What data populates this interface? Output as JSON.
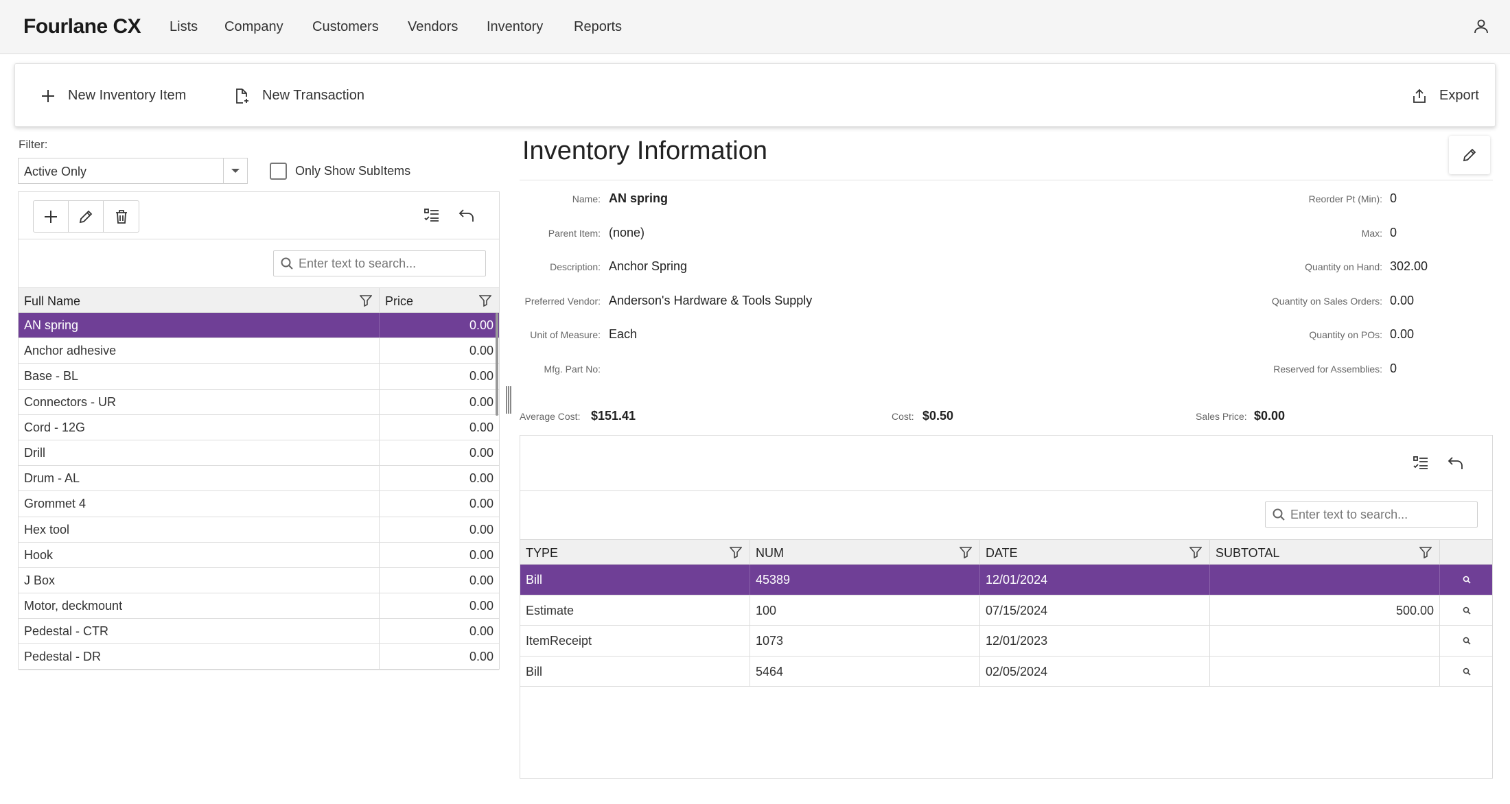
{
  "app": {
    "brand": "Fourlane CX",
    "nav": [
      "Lists",
      "Company",
      "Customers",
      "Vendors",
      "Inventory",
      "Reports"
    ]
  },
  "toolbar": {
    "new_inventory_item": "New Inventory Item",
    "new_transaction": "New Transaction",
    "export": "Export"
  },
  "filter": {
    "label": "Filter:",
    "value": "Active Only",
    "checkbox_label": "Only Show SubItems"
  },
  "left_grid": {
    "search_placeholder": "Enter text to search...",
    "columns": [
      "Full Name",
      "Price"
    ],
    "rows": [
      {
        "name": "AN spring",
        "price": "0.00",
        "selected": true
      },
      {
        "name": "Anchor adhesive",
        "price": "0.00"
      },
      {
        "name": "Base - BL",
        "price": "0.00"
      },
      {
        "name": "Connectors - UR",
        "price": "0.00"
      },
      {
        "name": "Cord - 12G",
        "price": "0.00"
      },
      {
        "name": "Drill",
        "price": "0.00"
      },
      {
        "name": "Drum - AL",
        "price": "0.00"
      },
      {
        "name": "Grommet 4",
        "price": "0.00"
      },
      {
        "name": "Hex tool",
        "price": "0.00"
      },
      {
        "name": "Hook",
        "price": "0.00"
      },
      {
        "name": "J Box",
        "price": "0.00"
      },
      {
        "name": "Motor, deckmount",
        "price": "0.00"
      },
      {
        "name": "Pedestal - CTR",
        "price": "0.00"
      },
      {
        "name": "Pedestal - DR",
        "price": "0.00"
      }
    ]
  },
  "info": {
    "title": "Inventory Information",
    "left_fields": [
      {
        "label": "Name:",
        "value": "AN spring",
        "bold": true
      },
      {
        "label": "Parent Item:",
        "value": "(none)"
      },
      {
        "label": "Description:",
        "value": "Anchor Spring"
      },
      {
        "label": "Preferred Vendor:",
        "value": "Anderson's Hardware & Tools Supply"
      },
      {
        "label": "Unit of Measure:",
        "value": "Each"
      },
      {
        "label": "Mfg. Part No:",
        "value": ""
      }
    ],
    "right_fields": [
      {
        "label": "Reorder Pt (Min):",
        "value": "0"
      },
      {
        "label": "Max:",
        "value": "0"
      },
      {
        "label": "Quantity on Hand:",
        "value": "302.00"
      },
      {
        "label": "Quantity on Sales Orders:",
        "value": "0.00"
      },
      {
        "label": "Quantity on POs:",
        "value": "0.00"
      },
      {
        "label": "Reserved for Assemblies:",
        "value": "0"
      }
    ],
    "average_cost_label": "Average Cost:",
    "average_cost": "$151.41",
    "cost_label": "Cost:",
    "cost": "$0.50",
    "sales_price_label": "Sales Price:",
    "sales_price": "$0.00"
  },
  "tx_grid": {
    "search_placeholder": "Enter text to search...",
    "columns": [
      "TYPE",
      "NUM",
      "DATE",
      "SUBTOTAL"
    ],
    "rows": [
      {
        "type": "Bill",
        "num": "45389",
        "date": "12/01/2024",
        "subtotal": "",
        "selected": true
      },
      {
        "type": "Estimate",
        "num": "100",
        "date": "07/15/2024",
        "subtotal": "500.00"
      },
      {
        "type": "ItemReceipt",
        "num": "1073",
        "date": "12/01/2023",
        "subtotal": ""
      },
      {
        "type": "Bill",
        "num": "5464",
        "date": "02/05/2024",
        "subtotal": ""
      }
    ]
  },
  "colors": {
    "accent": "#6f3f96"
  }
}
